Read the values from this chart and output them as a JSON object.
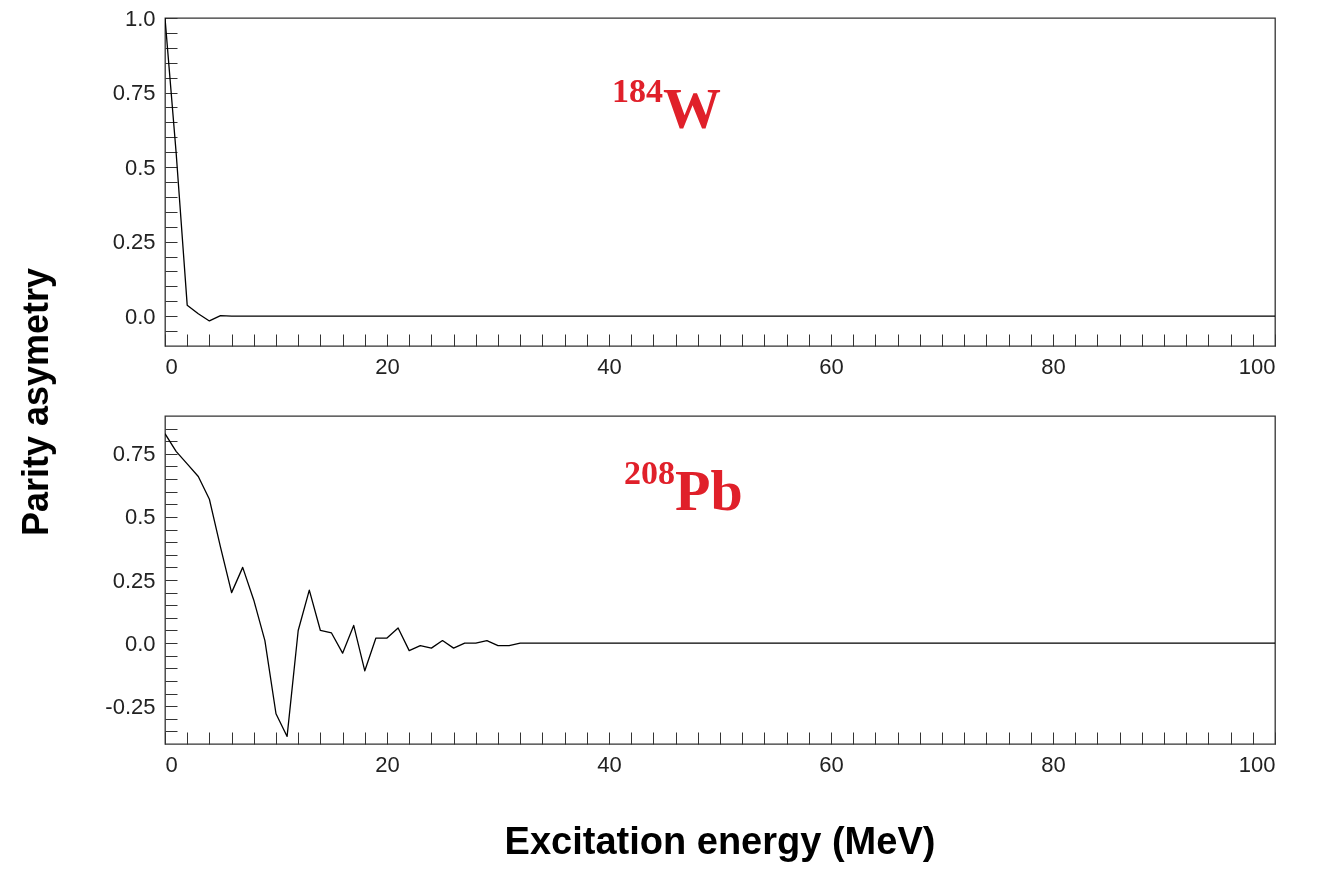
{
  "chart_data": [
    {
      "type": "line",
      "ylabel": "Parity asymetry",
      "annotations": [
        "$^{184}$W"
      ],
      "xlim": [
        0,
        100
      ],
      "ylim": [
        -0.1,
        1.0
      ],
      "xticks": [
        0,
        {
          "value": 2,
          "label": null
        },
        {
          "value": 4,
          "label": null
        },
        {
          "value": 6,
          "label": null
        },
        {
          "value": 8,
          "label": null
        },
        {
          "value": 10,
          "label": null
        },
        {
          "value": 12,
          "label": null
        },
        {
          "value": 14,
          "label": null
        },
        {
          "value": 16,
          "label": null
        },
        {
          "value": 18,
          "label": null
        },
        20,
        {
          "value": 22,
          "label": null
        },
        {
          "value": 24,
          "label": null
        },
        {
          "value": 26,
          "label": null
        },
        {
          "value": 28,
          "label": null
        },
        {
          "value": 30,
          "label": null
        },
        {
          "value": 32,
          "label": null
        },
        {
          "value": 34,
          "label": null
        },
        {
          "value": 36,
          "label": null
        },
        {
          "value": 38,
          "label": null
        },
        40,
        {
          "value": 42,
          "label": null
        },
        {
          "value": 44,
          "label": null
        },
        {
          "value": 46,
          "label": null
        },
        {
          "value": 48,
          "label": null
        },
        {
          "value": 50,
          "label": null
        },
        {
          "value": 52,
          "label": null
        },
        {
          "value": 54,
          "label": null
        },
        {
          "value": 56,
          "label": null
        },
        {
          "value": 58,
          "label": null
        },
        60,
        {
          "value": 62,
          "label": null
        },
        {
          "value": 64,
          "label": null
        },
        {
          "value": 66,
          "label": null
        },
        {
          "value": 68,
          "label": null
        },
        {
          "value": 70,
          "label": null
        },
        {
          "value": 72,
          "label": null
        },
        {
          "value": 74,
          "label": null
        },
        {
          "value": 76,
          "label": null
        },
        {
          "value": 78,
          "label": null
        },
        80,
        {
          "value": 82,
          "label": null
        },
        {
          "value": 84,
          "label": null
        },
        {
          "value": 86,
          "label": null
        },
        {
          "value": 88,
          "label": null
        },
        {
          "value": 90,
          "label": null
        },
        {
          "value": 92,
          "label": null
        },
        {
          "value": 94,
          "label": null
        },
        {
          "value": 96,
          "label": null
        },
        {
          "value": 98,
          "label": null
        },
        100
      ],
      "yticks": [
        {
          "value": -0.05,
          "label": null
        },
        {
          "value": 0,
          "label": "0.0"
        },
        {
          "value": 0.05,
          "label": null
        },
        {
          "value": 0.1,
          "label": null
        },
        {
          "value": 0.15,
          "label": null
        },
        {
          "value": 0.2,
          "label": null
        },
        0.25,
        {
          "value": 0.3,
          "label": null
        },
        {
          "value": 0.35,
          "label": null
        },
        {
          "value": 0.4,
          "label": null
        },
        {
          "value": 0.45,
          "label": null
        },
        0.5,
        {
          "value": 0.55,
          "label": null
        },
        {
          "value": 0.6,
          "label": null
        },
        {
          "value": 0.65,
          "label": null
        },
        {
          "value": 0.7,
          "label": null
        },
        0.75,
        {
          "value": 0.8,
          "label": null
        },
        {
          "value": 0.85,
          "label": null
        },
        {
          "value": 0.9,
          "label": null
        },
        {
          "value": 0.95,
          "label": null
        },
        {
          "value": 1,
          "label": "1.0"
        }
      ],
      "series": [
        {
          "color": "#000000",
          "x": [
            0,
            1,
            2,
            3,
            4,
            5,
            6,
            10,
            20,
            30,
            40,
            50,
            60,
            70,
            80,
            90,
            100
          ],
          "values": [
            1.0,
            0.55,
            0.037,
            0.008,
            -0.016,
            0.002,
            0,
            0,
            0,
            0,
            0,
            0,
            0,
            0,
            0,
            0,
            0
          ]
        }
      ]
    },
    {
      "type": "line",
      "xlabel": "Excitation energy (MeV)",
      "annotations": [
        "$^{208}$Pb"
      ],
      "xlim": [
        0,
        100
      ],
      "ylim": [
        -0.4,
        0.9
      ],
      "xticks": [
        0,
        {
          "value": 2,
          "label": null
        },
        {
          "value": 4,
          "label": null
        },
        {
          "value": 6,
          "label": null
        },
        {
          "value": 8,
          "label": null
        },
        {
          "value": 10,
          "label": null
        },
        {
          "value": 12,
          "label": null
        },
        {
          "value": 14,
          "label": null
        },
        {
          "value": 16,
          "label": null
        },
        {
          "value": 18,
          "label": null
        },
        20,
        {
          "value": 22,
          "label": null
        },
        {
          "value": 24,
          "label": null
        },
        {
          "value": 26,
          "label": null
        },
        {
          "value": 28,
          "label": null
        },
        {
          "value": 30,
          "label": null
        },
        {
          "value": 32,
          "label": null
        },
        {
          "value": 34,
          "label": null
        },
        {
          "value": 36,
          "label": null
        },
        {
          "value": 38,
          "label": null
        },
        40,
        {
          "value": 42,
          "label": null
        },
        {
          "value": 44,
          "label": null
        },
        {
          "value": 46,
          "label": null
        },
        {
          "value": 48,
          "label": null
        },
        {
          "value": 50,
          "label": null
        },
        {
          "value": 52,
          "label": null
        },
        {
          "value": 54,
          "label": null
        },
        {
          "value": 56,
          "label": null
        },
        {
          "value": 58,
          "label": null
        },
        60,
        {
          "value": 62,
          "label": null
        },
        {
          "value": 64,
          "label": null
        },
        {
          "value": 66,
          "label": null
        },
        {
          "value": 68,
          "label": null
        },
        {
          "value": 70,
          "label": null
        },
        {
          "value": 72,
          "label": null
        },
        {
          "value": 74,
          "label": null
        },
        {
          "value": 76,
          "label": null
        },
        {
          "value": 78,
          "label": null
        },
        80,
        {
          "value": 82,
          "label": null
        },
        {
          "value": 84,
          "label": null
        },
        {
          "value": 86,
          "label": null
        },
        {
          "value": 88,
          "label": null
        },
        {
          "value": 90,
          "label": null
        },
        {
          "value": 92,
          "label": null
        },
        {
          "value": 94,
          "label": null
        },
        {
          "value": 96,
          "label": null
        },
        {
          "value": 98,
          "label": null
        },
        100
      ],
      "yticks": [
        {
          "value": -0.35,
          "label": null
        },
        {
          "value": -0.3,
          "label": null
        },
        -0.25,
        {
          "value": -0.2,
          "label": null
        },
        {
          "value": -0.15,
          "label": null
        },
        {
          "value": -0.1,
          "label": null
        },
        {
          "value": -0.05,
          "label": null
        },
        {
          "value": 0,
          "label": "0.0"
        },
        {
          "value": 0.05,
          "label": null
        },
        {
          "value": 0.1,
          "label": null
        },
        {
          "value": 0.15,
          "label": null
        },
        {
          "value": 0.2,
          "label": null
        },
        0.25,
        {
          "value": 0.3,
          "label": null
        },
        {
          "value": 0.35,
          "label": null
        },
        {
          "value": 0.4,
          "label": null
        },
        {
          "value": 0.45,
          "label": null
        },
        0.5,
        {
          "value": 0.55,
          "label": null
        },
        {
          "value": 0.6,
          "label": null
        },
        {
          "value": 0.65,
          "label": null
        },
        {
          "value": 0.7,
          "label": null
        },
        0.75,
        {
          "value": 0.8,
          "label": null
        },
        {
          "value": 0.85,
          "label": null
        }
      ],
      "series": [
        {
          "color": "#000000",
          "x": [
            0,
            1,
            2,
            3,
            4,
            5,
            6,
            7,
            8,
            9,
            10,
            11,
            12,
            13,
            14,
            15,
            16,
            17,
            18,
            19,
            20,
            21,
            22,
            23,
            24,
            25,
            26,
            27,
            28,
            29,
            30,
            31,
            32,
            40,
            50,
            60,
            70,
            80,
            90,
            100
          ],
          "values": [
            0.83,
            0.76,
            0.71,
            0.66,
            0.57,
            0.38,
            0.2,
            0.3,
            0.17,
            0.01,
            -0.28,
            -0.37,
            0.05,
            0.21,
            0.05,
            0.04,
            -0.04,
            0.07,
            -0.11,
            0.02,
            0.02,
            0.06,
            -0.03,
            -0.01,
            -0.02,
            0.01,
            -0.02,
            0,
            0,
            0.01,
            -0.01,
            -0.01,
            0,
            0,
            0,
            0,
            0,
            0,
            0,
            0
          ]
        }
      ]
    }
  ]
}
